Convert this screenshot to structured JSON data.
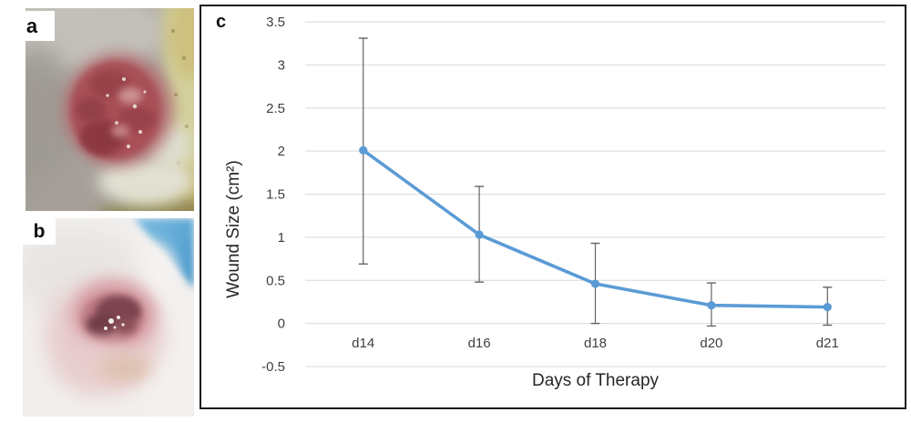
{
  "figure": {
    "photo_a_label": "a",
    "photo_b_label": "b",
    "panel_c_label": "c"
  },
  "chart_data": {
    "type": "line",
    "title": "",
    "categories": [
      "d14",
      "d16",
      "d18",
      "d20",
      "d21"
    ],
    "series": [
      {
        "name": "Wound Size",
        "values": [
          2.01,
          1.03,
          0.46,
          0.21,
          0.19
        ],
        "error_upper": [
          3.31,
          1.59,
          0.93,
          0.47,
          0.42
        ],
        "error_lower": [
          0.69,
          0.48,
          0.0,
          -0.03,
          -0.02
        ]
      }
    ],
    "xlabel": "Days of Therapy",
    "ylabel": "Wound Size (cm²)",
    "ylim": [
      -0.5,
      3.5
    ],
    "y_ticks": [
      3.5,
      3,
      2.5,
      2,
      1.5,
      1,
      0.5,
      0,
      -0.5
    ],
    "grid": true,
    "legend": false,
    "marker": "circle",
    "colors": {
      "line": "#5B9BD5",
      "marker": "#5B9BD5",
      "error_bar": "#636363",
      "gridline": "#D9D9D9",
      "tick_text": "#3F3F3F",
      "axis_title_text": "#262626",
      "panel_border": "#1B1B1B"
    }
  }
}
